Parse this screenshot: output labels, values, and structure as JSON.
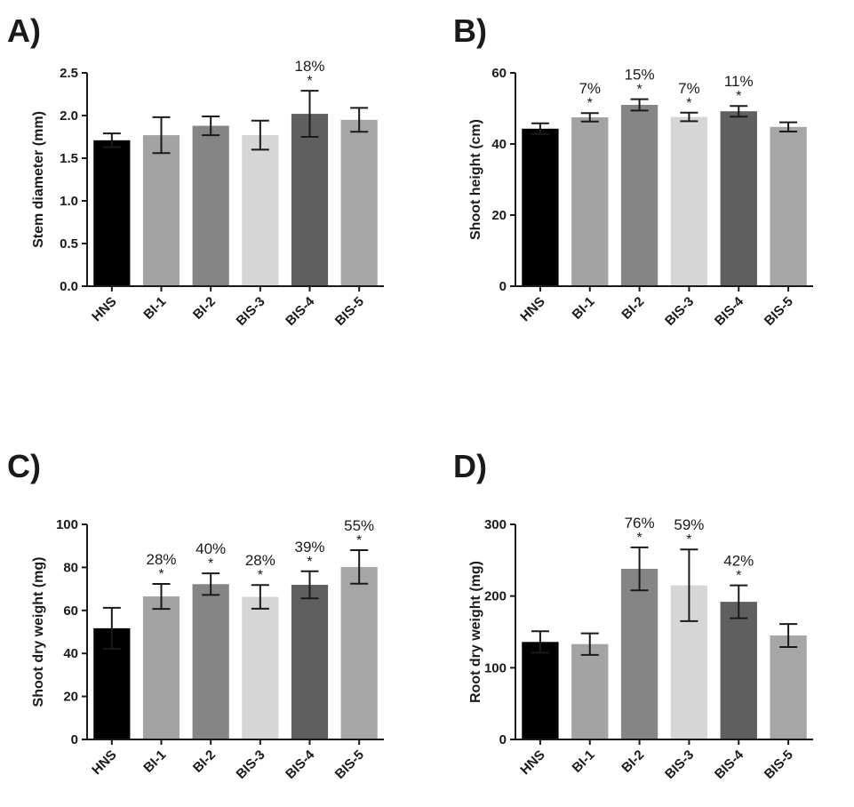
{
  "colors": {
    "HNS": "#000000",
    "BI-1": "#a3a3a3",
    "BI-2": "#858585",
    "BIS-3": "#d6d6d6",
    "BIS-4": "#5f5f5f",
    "BIS-5": "#a6a6a6",
    "axis": "#1a1a1a"
  },
  "chart_data": [
    {
      "panel": "A)",
      "type": "bar",
      "ylabel": "Stem diameter (mm)",
      "categories": [
        "HNS",
        "BI-1",
        "BI-2",
        "BIS-3",
        "BIS-4",
        "BIS-5"
      ],
      "values": [
        1.71,
        1.77,
        1.88,
        1.77,
        2.02,
        1.95
      ],
      "errors": [
        0.08,
        0.21,
        0.11,
        0.17,
        0.27,
        0.14
      ],
      "ylim": [
        0,
        2.5
      ],
      "yticks": [
        "0.0",
        "0.5",
        "1.0",
        "1.5",
        "2.0",
        "2.5"
      ],
      "significance": [
        "",
        "",
        "",
        "",
        "*",
        ""
      ],
      "percent_labels": [
        "",
        "",
        "",
        "",
        "18%",
        ""
      ]
    },
    {
      "panel": "B)",
      "type": "bar",
      "ylabel": "Shoot height (cm)",
      "categories": [
        "HNS",
        "BI-1",
        "BI-2",
        "BIS-3",
        "BIS-4",
        "BIS-5"
      ],
      "values": [
        44.3,
        47.5,
        51.0,
        47.6,
        49.2,
        44.8
      ],
      "errors": [
        1.5,
        1.2,
        1.6,
        1.2,
        1.5,
        1.3
      ],
      "ylim": [
        0,
        60
      ],
      "yticks": [
        "0",
        "20",
        "40",
        "60"
      ],
      "significance": [
        "",
        "*",
        "*",
        "*",
        "*",
        ""
      ],
      "percent_labels": [
        "",
        "7%",
        "15%",
        "7%",
        "11%",
        ""
      ]
    },
    {
      "panel": "C)",
      "type": "bar",
      "ylabel": "Shoot dry weight (mg)",
      "categories": [
        "HNS",
        "BI-1",
        "BI-2",
        "BIS-3",
        "BIS-4",
        "BIS-5"
      ],
      "values": [
        51.7,
        66.5,
        72.2,
        66.3,
        71.9,
        80.2
      ],
      "errors": [
        9.5,
        5.8,
        5.0,
        5.5,
        6.3,
        7.8
      ],
      "ylim": [
        0,
        100
      ],
      "yticks": [
        "0",
        "20",
        "40",
        "60",
        "80",
        "100"
      ],
      "significance": [
        "",
        "*",
        "*",
        "*",
        "*",
        "*"
      ],
      "percent_labels": [
        "",
        "28%",
        "40%",
        "28%",
        "39%",
        "55%"
      ]
    },
    {
      "panel": "D)",
      "type": "bar",
      "ylabel": "Root dry weight (mg)",
      "categories": [
        "HNS",
        "BI-1",
        "BI-2",
        "BIS-3",
        "BIS-4",
        "BIS-5"
      ],
      "values": [
        136,
        133,
        238,
        215,
        192,
        145
      ],
      "errors": [
        15,
        15,
        30,
        50,
        23,
        16
      ],
      "ylim": [
        0,
        300
      ],
      "yticks": [
        "0",
        "100",
        "200",
        "300"
      ],
      "significance": [
        "",
        "",
        "*",
        "*",
        "*",
        ""
      ],
      "percent_labels": [
        "",
        "",
        "76%",
        "59%",
        "42%",
        ""
      ]
    }
  ]
}
